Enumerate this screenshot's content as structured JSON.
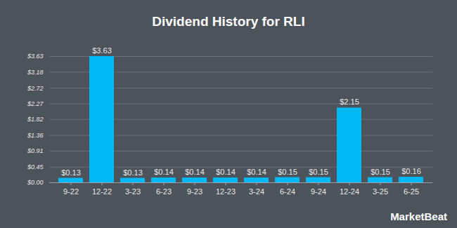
{
  "chart_data": {
    "type": "bar",
    "title": "Dividend History for RLI",
    "categories": [
      "9-22",
      "12-22",
      "3-23",
      "6-23",
      "9-23",
      "12-23",
      "3-24",
      "6-24",
      "9-24",
      "12-24",
      "3-25",
      "6-25"
    ],
    "values": [
      0.13,
      3.63,
      0.13,
      0.14,
      0.14,
      0.14,
      0.14,
      0.15,
      0.15,
      2.15,
      0.15,
      0.16
    ],
    "value_labels": [
      "$0.13",
      "$3.63",
      "$0.13",
      "$0.14",
      "$0.14",
      "$0.14",
      "$0.14",
      "$0.15",
      "$0.15",
      "$2.15",
      "$0.15",
      "$0.16"
    ],
    "color": "#00b9f5",
    "ylim": [
      0,
      3.63
    ],
    "yticks": [
      {
        "value": 0,
        "label": "$0.00"
      },
      {
        "value": 0.45,
        "label": "$0.45"
      },
      {
        "value": 0.91,
        "label": "$0.91"
      },
      {
        "value": 1.36,
        "label": "$1.36"
      },
      {
        "value": 1.82,
        "label": "$1.82"
      },
      {
        "value": 2.27,
        "label": "$2.27"
      },
      {
        "value": 2.72,
        "label": "$2.72"
      },
      {
        "value": 3.18,
        "label": "$3.18"
      },
      {
        "value": 3.63,
        "label": "$3.63"
      }
    ],
    "grid": true,
    "data_labels": true,
    "annotations": [
      {
        "text": "MarketBeat"
      }
    ]
  }
}
